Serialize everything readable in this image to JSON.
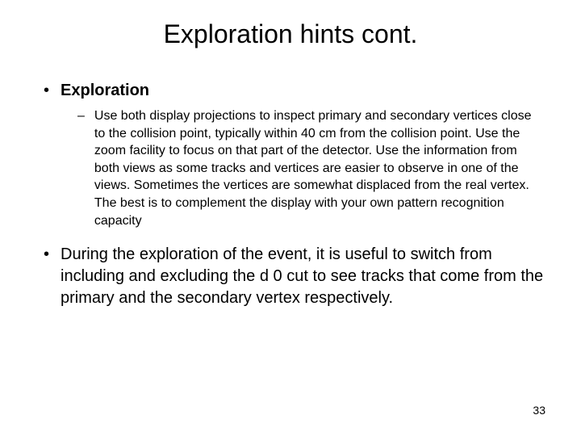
{
  "slide": {
    "title": "Exploration hints cont.",
    "bullets": [
      {
        "level": 1,
        "bold": true,
        "text": "Exploration"
      },
      {
        "level": 2,
        "text": "Use both display projections to inspect primary and secondary vertices close to the collision point, typically within 40 cm from the collision point. Use the zoom facility to focus on that part of the detector. Use the information from both views as some tracks and vertices are easier to observe in one of the views. Sometimes the vertices are somewhat displaced from the real vertex. The best is to complement the display with your own pattern recognition capacity"
      },
      {
        "level": 1,
        "bold": false,
        "text": "During the exploration of the event, it is useful to switch from including and excluding the d 0 cut to see tracks that come from the primary and the secondary vertex respectively."
      }
    ],
    "page_number": "33"
  },
  "style": {
    "background_color": "#ffffff",
    "text_color": "#000000",
    "title_fontsize": 32,
    "l1_fontsize": 20,
    "l2_fontsize": 16,
    "page_num_fontsize": 14,
    "font_family": "Arial, Helvetica, sans-serif"
  }
}
